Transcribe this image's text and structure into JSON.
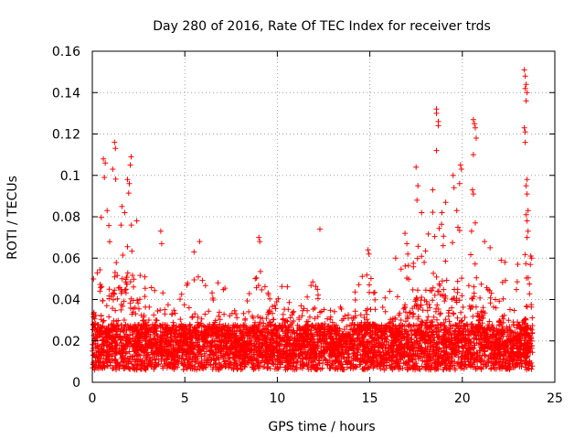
{
  "chart_data": {
    "type": "scatter",
    "title": "Day 280 of 2016, Rate Of TEC Index for receiver trds",
    "xlabel": "GPS time / hours",
    "ylabel": "ROTI / TECUs",
    "xlim": [
      0,
      25
    ],
    "ylim": [
      0,
      0.16
    ],
    "grid": true,
    "marker": "+",
    "color": "#ff0000",
    "x_ticks": [
      0,
      5,
      10,
      15,
      20,
      25
    ],
    "x_tick_labels": [
      "0",
      "5",
      "10",
      "15",
      "20",
      "25"
    ],
    "y_ticks": [
      0,
      0.02,
      0.04,
      0.06,
      0.08,
      0.1,
      0.12,
      0.14,
      0.16
    ],
    "y_tick_labels": [
      "0",
      "0.02",
      "0.04",
      "0.06",
      "0.08",
      "0.1",
      "0.12",
      "0.14",
      "0.16"
    ],
    "x_data_range": [
      0,
      23.8
    ],
    "outliers": [
      [
        0.6,
        0.108
      ],
      [
        0.7,
        0.106
      ],
      [
        0.65,
        0.099
      ],
      [
        1.2,
        0.116
      ],
      [
        1.25,
        0.113
      ],
      [
        1.1,
        0.103
      ],
      [
        2.1,
        0.109
      ],
      [
        2.05,
        0.105
      ],
      [
        1.9,
        0.098
      ],
      [
        2.0,
        0.096
      ],
      [
        1.6,
        0.085
      ],
      [
        1.75,
        0.082
      ],
      [
        0.8,
        0.083
      ],
      [
        2.4,
        0.078
      ],
      [
        1.55,
        0.076
      ],
      [
        3.7,
        0.073
      ],
      [
        3.75,
        0.067
      ],
      [
        5.8,
        0.068
      ],
      [
        5.5,
        0.063
      ],
      [
        9.0,
        0.07
      ],
      [
        9.05,
        0.068
      ],
      [
        12.3,
        0.074
      ],
      [
        14.9,
        0.064
      ],
      [
        14.95,
        0.062
      ],
      [
        16.4,
        0.06
      ],
      [
        16.9,
        0.072
      ],
      [
        17.0,
        0.067
      ],
      [
        17.5,
        0.104
      ],
      [
        17.6,
        0.095
      ],
      [
        17.55,
        0.088
      ],
      [
        17.8,
        0.082
      ],
      [
        18.4,
        0.093
      ],
      [
        18.6,
        0.132
      ],
      [
        18.6,
        0.13
      ],
      [
        18.7,
        0.126
      ],
      [
        18.7,
        0.124
      ],
      [
        18.6,
        0.112
      ],
      [
        18.9,
        0.082
      ],
      [
        19.1,
        0.087
      ],
      [
        19.5,
        0.1
      ],
      [
        19.55,
        0.094
      ],
      [
        19.9,
        0.105
      ],
      [
        19.95,
        0.103
      ],
      [
        19.85,
        0.096
      ],
      [
        19.7,
        0.083
      ],
      [
        20.6,
        0.127
      ],
      [
        20.65,
        0.125
      ],
      [
        20.7,
        0.123
      ],
      [
        20.75,
        0.118
      ],
      [
        20.6,
        0.11
      ],
      [
        20.55,
        0.093
      ],
      [
        20.6,
        0.091
      ],
      [
        20.7,
        0.077
      ],
      [
        20.5,
        0.073
      ],
      [
        21.2,
        0.068
      ],
      [
        21.5,
        0.065
      ],
      [
        22.1,
        0.059
      ],
      [
        22.3,
        0.058
      ],
      [
        23.0,
        0.057
      ],
      [
        23.35,
        0.151
      ],
      [
        23.4,
        0.148
      ],
      [
        23.45,
        0.144
      ],
      [
        23.4,
        0.142
      ],
      [
        23.5,
        0.14
      ],
      [
        23.45,
        0.136
      ],
      [
        23.35,
        0.123
      ],
      [
        23.4,
        0.121
      ],
      [
        23.4,
        0.116
      ],
      [
        23.5,
        0.098
      ],
      [
        23.45,
        0.095
      ],
      [
        23.5,
        0.091
      ],
      [
        23.55,
        0.083
      ],
      [
        23.45,
        0.081
      ],
      [
        23.5,
        0.078
      ],
      [
        23.55,
        0.073
      ],
      [
        23.5,
        0.07
      ],
      [
        23.7,
        0.061
      ],
      [
        23.75,
        0.06
      ]
    ],
    "envelope": [
      [
        0.0,
        0.055
      ],
      [
        0.25,
        0.065
      ],
      [
        0.5,
        0.095
      ],
      [
        0.75,
        0.085
      ],
      [
        1.0,
        0.07
      ],
      [
        1.25,
        0.1
      ],
      [
        1.5,
        0.08
      ],
      [
        1.75,
        0.085
      ],
      [
        2.0,
        0.095
      ],
      [
        2.25,
        0.08
      ],
      [
        2.5,
        0.065
      ],
      [
        2.75,
        0.06
      ],
      [
        3.0,
        0.05
      ],
      [
        3.25,
        0.045
      ],
      [
        3.5,
        0.05
      ],
      [
        3.75,
        0.055
      ],
      [
        4.0,
        0.04
      ],
      [
        4.25,
        0.035
      ],
      [
        4.5,
        0.04
      ],
      [
        4.75,
        0.045
      ],
      [
        5.0,
        0.045
      ],
      [
        5.25,
        0.05
      ],
      [
        5.5,
        0.06
      ],
      [
        5.75,
        0.06
      ],
      [
        6.0,
        0.05
      ],
      [
        6.25,
        0.045
      ],
      [
        6.5,
        0.05
      ],
      [
        6.75,
        0.055
      ],
      [
        7.0,
        0.052
      ],
      [
        7.25,
        0.045
      ],
      [
        7.5,
        0.035
      ],
      [
        7.75,
        0.035
      ],
      [
        8.0,
        0.03
      ],
      [
        8.25,
        0.035
      ],
      [
        8.5,
        0.045
      ],
      [
        8.75,
        0.055
      ],
      [
        9.0,
        0.06
      ],
      [
        9.25,
        0.05
      ],
      [
        9.5,
        0.045
      ],
      [
        9.75,
        0.04
      ],
      [
        10.0,
        0.045
      ],
      [
        10.25,
        0.055
      ],
      [
        10.5,
        0.05
      ],
      [
        10.75,
        0.04
      ],
      [
        11.0,
        0.035
      ],
      [
        11.25,
        0.04
      ],
      [
        11.5,
        0.045
      ],
      [
        11.75,
        0.055
      ],
      [
        12.0,
        0.05
      ],
      [
        12.25,
        0.045
      ],
      [
        12.5,
        0.04
      ],
      [
        12.75,
        0.035
      ],
      [
        13.0,
        0.038
      ],
      [
        13.25,
        0.035
      ],
      [
        13.5,
        0.04
      ],
      [
        13.75,
        0.038
      ],
      [
        14.0,
        0.04
      ],
      [
        14.25,
        0.045
      ],
      [
        14.5,
        0.05
      ],
      [
        14.75,
        0.06
      ],
      [
        15.0,
        0.055
      ],
      [
        15.25,
        0.045
      ],
      [
        15.5,
        0.04
      ],
      [
        15.75,
        0.045
      ],
      [
        16.0,
        0.05
      ],
      [
        16.25,
        0.055
      ],
      [
        16.5,
        0.052
      ],
      [
        16.75,
        0.06
      ],
      [
        17.0,
        0.065
      ],
      [
        17.25,
        0.06
      ],
      [
        17.5,
        0.075
      ],
      [
        17.75,
        0.07
      ],
      [
        18.0,
        0.075
      ],
      [
        18.25,
        0.08
      ],
      [
        18.5,
        0.085
      ],
      [
        18.75,
        0.08
      ],
      [
        19.0,
        0.075
      ],
      [
        19.25,
        0.07
      ],
      [
        19.5,
        0.075
      ],
      [
        19.75,
        0.08
      ],
      [
        20.0,
        0.07
      ],
      [
        20.25,
        0.065
      ],
      [
        20.5,
        0.07
      ],
      [
        20.75,
        0.06
      ],
      [
        21.0,
        0.055
      ],
      [
        21.25,
        0.06
      ],
      [
        21.5,
        0.05
      ],
      [
        21.75,
        0.045
      ],
      [
        22.0,
        0.05
      ],
      [
        22.25,
        0.055
      ],
      [
        22.5,
        0.045
      ],
      [
        22.75,
        0.04
      ],
      [
        23.0,
        0.05
      ],
      [
        23.25,
        0.06
      ],
      [
        23.5,
        0.065
      ],
      [
        23.8,
        0.055
      ]
    ]
  }
}
